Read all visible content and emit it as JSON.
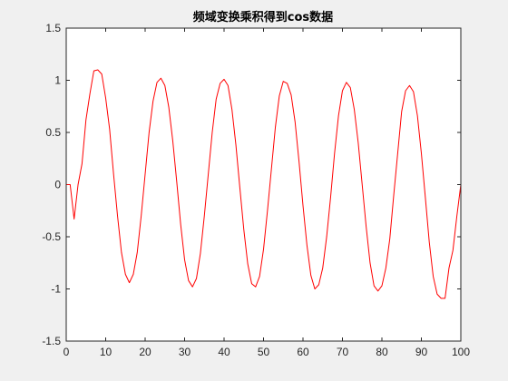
{
  "chart_data": {
    "type": "line",
    "title": "频域变换乘积得到cos数据",
    "xlabel": "",
    "ylabel": "",
    "xlim": [
      0,
      100
    ],
    "ylim": [
      -1.5,
      1.5
    ],
    "x_ticks": [
      0,
      10,
      20,
      30,
      40,
      50,
      60,
      70,
      80,
      90,
      100
    ],
    "x_tick_labels": [
      "0",
      "10",
      "20",
      "30",
      "40",
      "50",
      "60",
      "70",
      "80",
      "90",
      "100"
    ],
    "y_ticks": [
      -1.5,
      -1,
      -0.5,
      0,
      0.5,
      1,
      1.5
    ],
    "y_tick_labels": [
      "-1.5",
      "-1",
      "-0.5",
      "0",
      "0.5",
      "1",
      "1.5"
    ],
    "grid": false,
    "series": [
      {
        "color": "#ff0000",
        "x": [
          0,
          1,
          2,
          3,
          4,
          5,
          6,
          7,
          8,
          9,
          10,
          11,
          12,
          13,
          14,
          15,
          16,
          17,
          18,
          19,
          20,
          21,
          22,
          23,
          24,
          25,
          26,
          27,
          28,
          29,
          30,
          31,
          32,
          33,
          34,
          35,
          36,
          37,
          38,
          39,
          40,
          41,
          42,
          43,
          44,
          45,
          46,
          47,
          48,
          49,
          50,
          51,
          52,
          53,
          54,
          55,
          56,
          57,
          58,
          59,
          60,
          61,
          62,
          63,
          64,
          65,
          66,
          67,
          68,
          69,
          70,
          71,
          72,
          73,
          74,
          75,
          76,
          77,
          78,
          79,
          80,
          81,
          82,
          83,
          84,
          85,
          86,
          87,
          88,
          89,
          90,
          91,
          92,
          93,
          94,
          95,
          96,
          97,
          98,
          99,
          100
        ],
        "y": [
          0.0,
          0.0,
          -0.33,
          0.0,
          0.2,
          0.62,
          0.87,
          1.09,
          1.1,
          1.06,
          0.83,
          0.53,
          0.1,
          -0.3,
          -0.65,
          -0.86,
          -0.94,
          -0.86,
          -0.65,
          -0.3,
          0.1,
          0.5,
          0.8,
          0.98,
          1.02,
          0.95,
          0.74,
          0.42,
          0.03,
          -0.38,
          -0.72,
          -0.92,
          -0.98,
          -0.9,
          -0.66,
          -0.3,
          0.1,
          0.5,
          0.82,
          0.97,
          1.01,
          0.95,
          0.72,
          0.38,
          -0.03,
          -0.43,
          -0.76,
          -0.95,
          -0.98,
          -0.88,
          -0.62,
          -0.25,
          0.15,
          0.55,
          0.85,
          0.99,
          0.97,
          0.86,
          0.6,
          0.22,
          -0.2,
          -0.58,
          -0.87,
          -1.0,
          -0.96,
          -0.8,
          -0.5,
          -0.12,
          0.3,
          0.66,
          0.9,
          0.98,
          0.93,
          0.72,
          0.4,
          0.0,
          -0.4,
          -0.75,
          -0.97,
          -1.02,
          -0.97,
          -0.8,
          -0.52,
          -0.1,
          0.3,
          0.7,
          0.9,
          0.95,
          0.89,
          0.66,
          0.3,
          -0.12,
          -0.55,
          -0.88,
          -1.05,
          -1.09,
          -1.09,
          -0.8,
          -0.63,
          -0.3,
          0.0
        ]
      }
    ]
  }
}
